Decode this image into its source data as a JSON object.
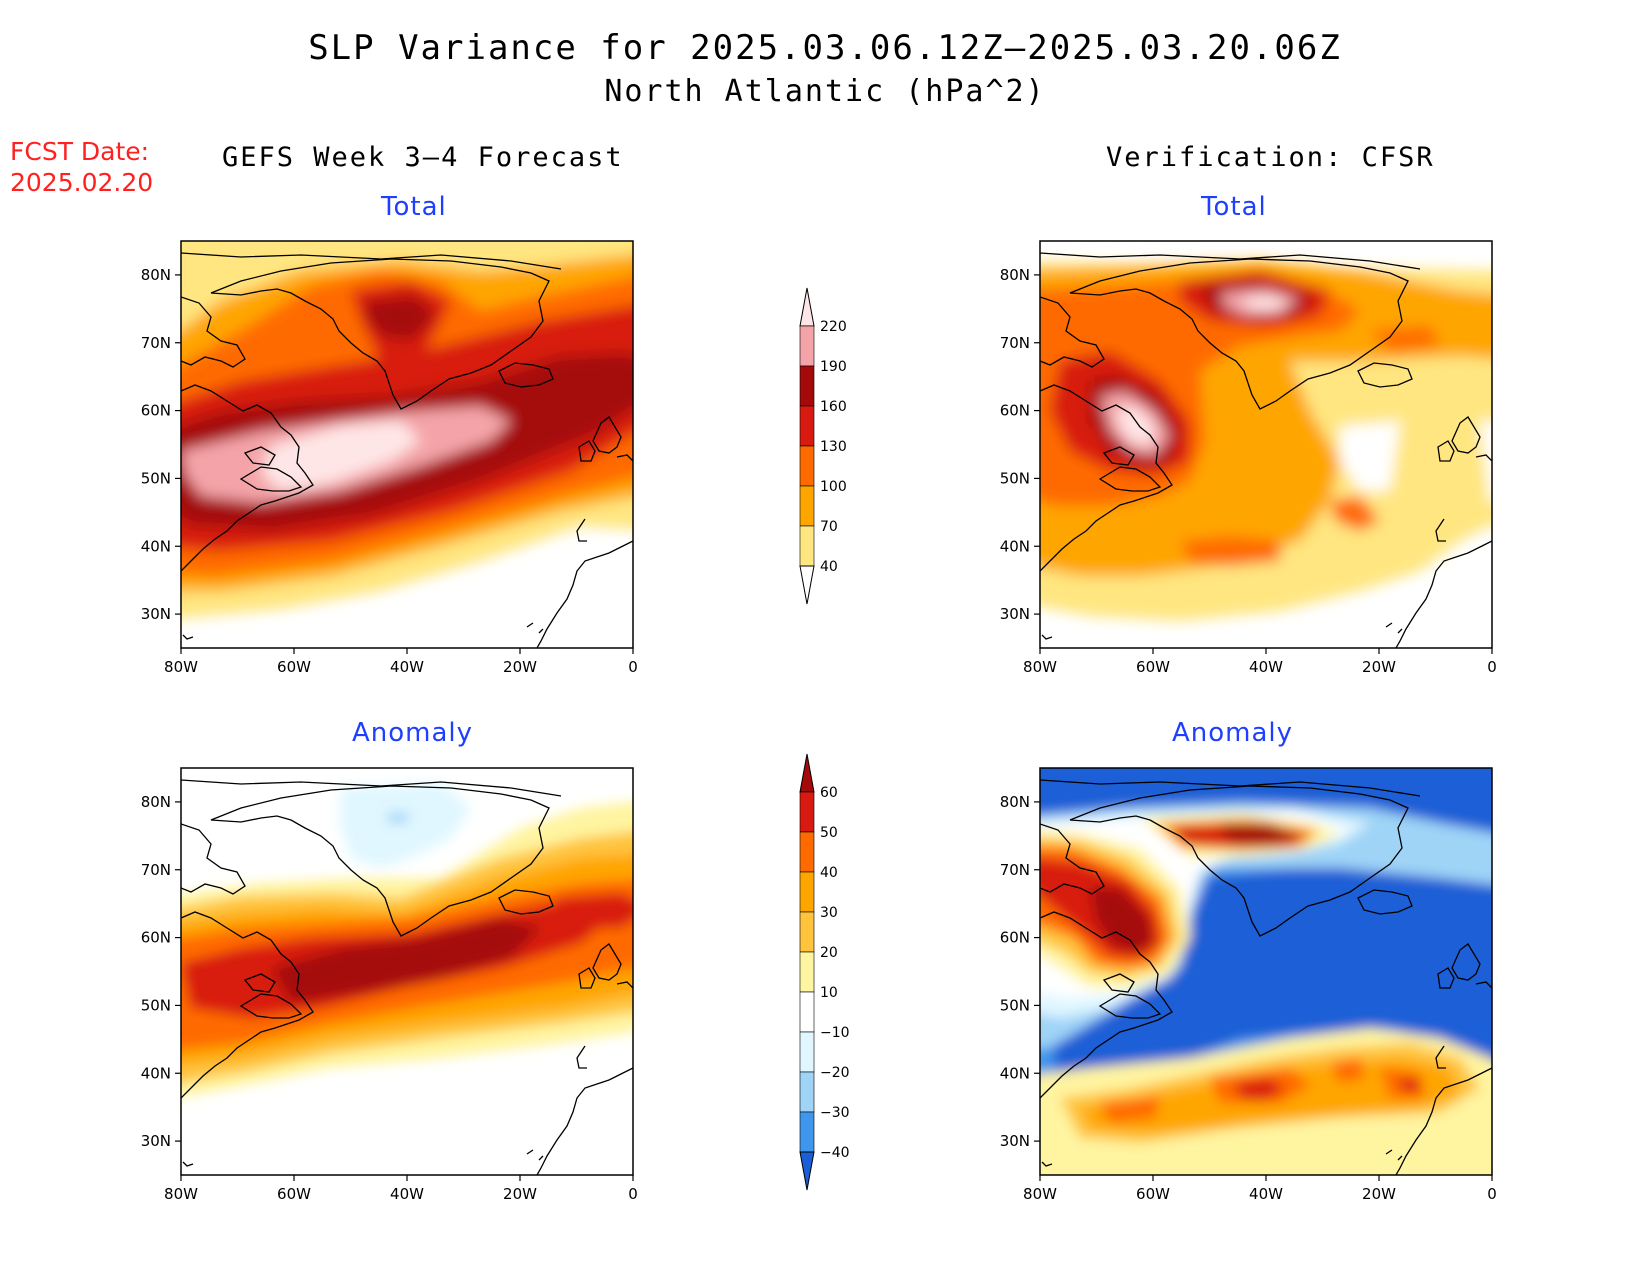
{
  "title": "SLP Variance for 2025.03.06.12Z–2025.03.20.06Z",
  "subtitle": "North Atlantic (hPa^2)",
  "fcst_label": "FCST Date:",
  "fcst_date": "2025.02.20",
  "left_header": "GEFS Week 3–4 Forecast",
  "right_header": "Verification: CFSR",
  "panels": {
    "top_left_title": "Total",
    "top_right_title": "Total",
    "bottom_left_title": "Anomaly",
    "bottom_right_title": "Anomaly"
  },
  "axes": {
    "lat_ticks": [
      "80N",
      "70N",
      "60N",
      "50N",
      "40N",
      "30N"
    ],
    "lon_ticks": [
      "80W",
      "60W",
      "40W",
      "20W",
      "0"
    ]
  },
  "colorbar_total": {
    "labels": [
      "220",
      "190",
      "160",
      "130",
      "100",
      "70",
      "40"
    ],
    "colors": [
      "#ffe6e6",
      "#f4a4a8",
      "#a50a0a",
      "#d81a10",
      "#ff6a00",
      "#ffa500",
      "#ffe680"
    ]
  },
  "colorbar_anom": {
    "labels": [
      "60",
      "50",
      "40",
      "30",
      "20",
      "10",
      "−10",
      "−20",
      "−30",
      "−40"
    ],
    "colors": [
      "#a50a0a",
      "#d81a10",
      "#ff6a00",
      "#ffa500",
      "#ffc43c",
      "#fff4a0",
      "#ffffff",
      "#e0f7ff",
      "#9fd4f7",
      "#3f96ec",
      "#1a5fd6"
    ]
  },
  "chart_data": [
    {
      "type": "heatmap",
      "panel": "GEFS Week 3–4 Forecast – Total",
      "x_range": [
        "80W",
        "0"
      ],
      "y_range": [
        "25N",
        "85N"
      ],
      "units": "hPa^2",
      "features": [
        {
          "location": [
            -45,
            52
          ],
          "value": ">220"
        },
        {
          "location": [
            -40,
            75
          ],
          "value": "160–190"
        },
        {
          "location": [
            -15,
            60
          ],
          "value": "160–190"
        }
      ]
    },
    {
      "type": "heatmap",
      "panel": "Verification: CFSR – Total",
      "x_range": [
        "80W",
        "0"
      ],
      "y_range": [
        "25N",
        "85N"
      ],
      "units": "hPa^2",
      "features": [
        {
          "location": [
            -62,
            55
          ],
          "value": ">220"
        },
        {
          "location": [
            -38,
            74
          ],
          "value": ">220"
        },
        {
          "location": [
            -20,
            53
          ],
          "value": "<40"
        }
      ]
    },
    {
      "type": "heatmap",
      "panel": "GEFS Week 3–4 Forecast – Anomaly",
      "x_range": [
        "80W",
        "0"
      ],
      "y_range": [
        "25N",
        "85N"
      ],
      "units": "hPa^2",
      "features": [
        {
          "location": [
            -45,
            54
          ],
          "value": ">60"
        },
        {
          "location": [
            -5,
            63
          ],
          "value": "50–60"
        }
      ]
    },
    {
      "type": "heatmap",
      "panel": "Verification: CFSR – Anomaly",
      "x_range": [
        "80W",
        "0"
      ],
      "y_range": [
        "25N",
        "85N"
      ],
      "units": "hPa^2",
      "features": [
        {
          "location": [
            -65,
            58
          ],
          "value": ">60"
        },
        {
          "location": [
            -40,
            76
          ],
          "value": ">60"
        },
        {
          "location": [
            -40,
            38
          ],
          "value": "50–60"
        },
        {
          "location": [
            -30,
            58
          ],
          "value": "<-40"
        }
      ]
    }
  ]
}
